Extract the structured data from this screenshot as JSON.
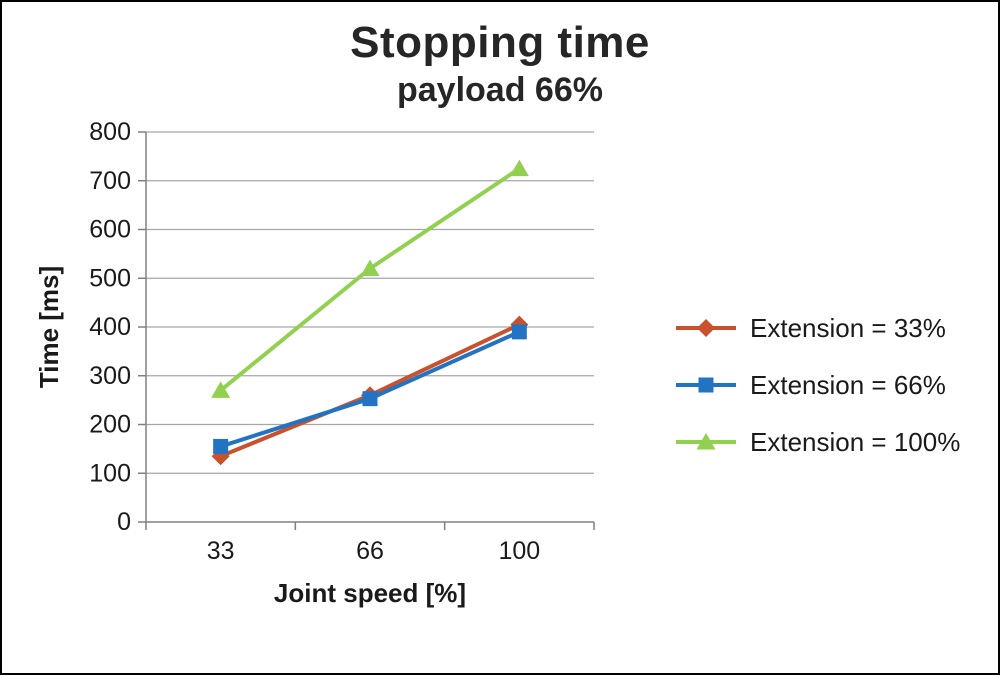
{
  "title": "Stopping time",
  "subtitle": "payload 66%",
  "chart_data": {
    "type": "line",
    "categories": [
      "33",
      "66",
      "100"
    ],
    "series": [
      {
        "name": "Extension = 33%",
        "values": [
          135,
          260,
          405
        ],
        "color": "#C9512B",
        "marker": "diamond"
      },
      {
        "name": "Extension = 66%",
        "values": [
          155,
          253,
          390
        ],
        "color": "#2273C3",
        "marker": "square"
      },
      {
        "name": "Extension = 100%",
        "values": [
          270,
          520,
          725
        ],
        "color": "#92D050",
        "marker": "triangle"
      }
    ],
    "xlabel": "Joint speed [%]",
    "ylabel": "Time [ms]",
    "ylim": [
      0,
      800
    ],
    "y_ticks": [
      0,
      100,
      200,
      300,
      400,
      500,
      600,
      700,
      800
    ],
    "grid": true,
    "legend_position": "right"
  }
}
